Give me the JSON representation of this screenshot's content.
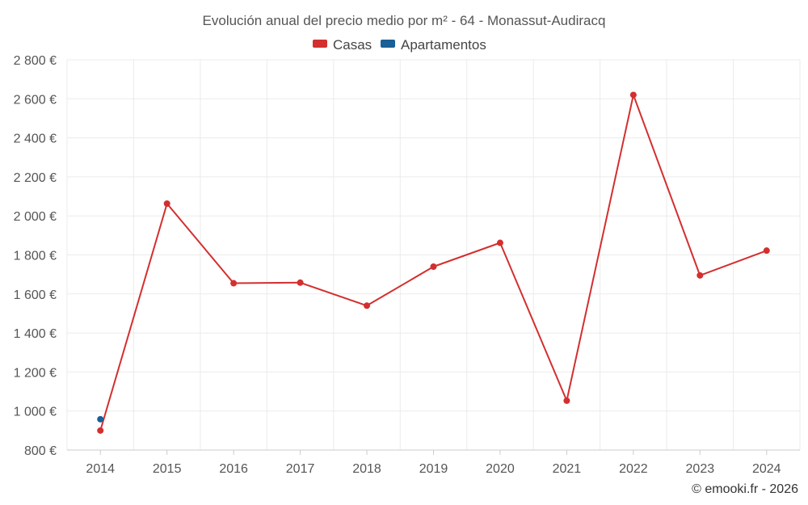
{
  "chart_data": {
    "type": "line",
    "title": "Evolución anual del precio medio por m² - 64 - Monassut-Audiracq",
    "categories": [
      "2014",
      "2015",
      "2016",
      "2017",
      "2018",
      "2019",
      "2020",
      "2021",
      "2022",
      "2023",
      "2024"
    ],
    "series": [
      {
        "name": "Casas",
        "color": "#d32f2f",
        "values": [
          900,
          2063,
          1655,
          1658,
          1540,
          1740,
          1862,
          1053,
          2620,
          1695,
          1822
        ]
      },
      {
        "name": "Apartamentos",
        "color": "#1a5f96",
        "values": [
          958,
          null,
          null,
          null,
          null,
          null,
          null,
          null,
          null,
          null,
          null
        ]
      }
    ],
    "ylim": [
      800,
      2800
    ],
    "yticks": [
      800,
      1000,
      1200,
      1400,
      1600,
      1800,
      2000,
      2200,
      2400,
      2600,
      2800
    ],
    "ytick_labels": [
      "800 €",
      "1 000 €",
      "1 200 €",
      "1 400 €",
      "1 600 €",
      "1 800 €",
      "2 000 €",
      "2 200 €",
      "2 400 €",
      "2 600 €",
      "2 800 €"
    ],
    "xlabel": "",
    "ylabel": "",
    "grid": true,
    "legend_position": "top-center"
  },
  "credit": "© emooki.fr - 2026"
}
